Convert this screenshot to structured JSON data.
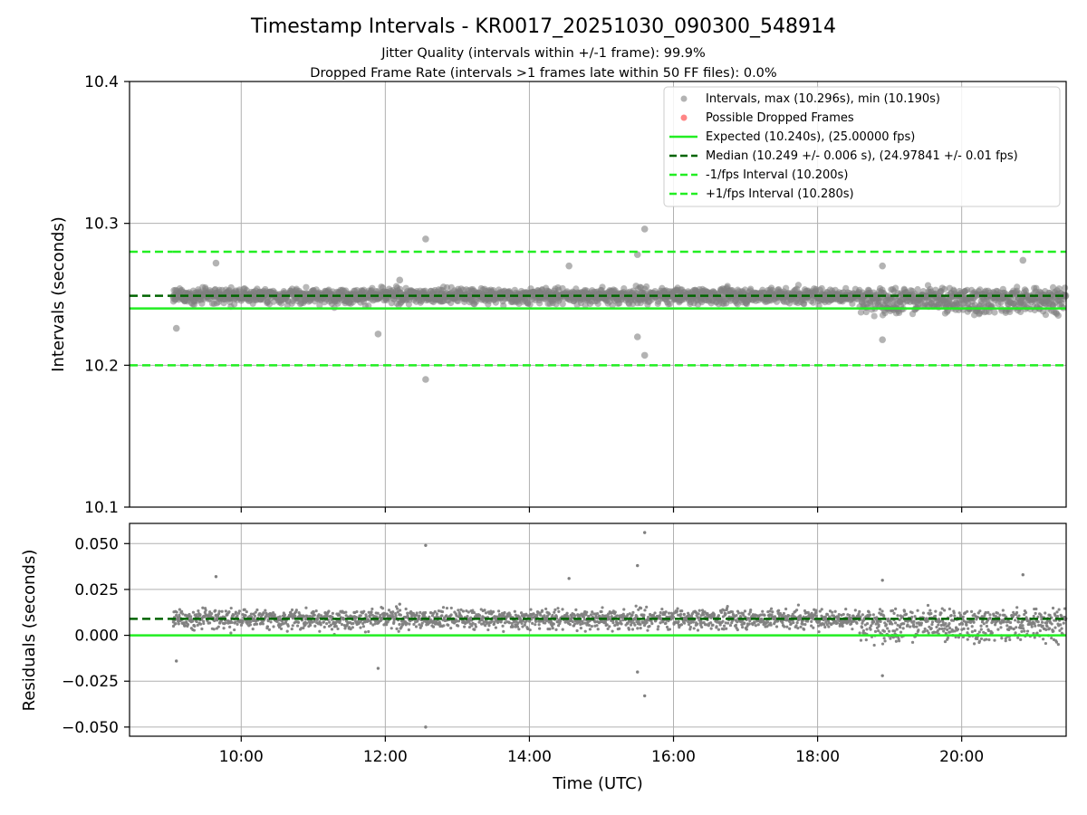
{
  "chart_data": [
    {
      "type": "scatter",
      "panel": "intervals",
      "title": "Timestamp Intervals - KR0017_20251030_090300_548914",
      "subtitle_1": "Jitter Quality (intervals within +/-1 frame): 99.9%",
      "subtitle_2": "Dropped Frame Rate (intervals >1 frames late within 50 FF files): 0.0%",
      "xlabel": "",
      "ylabel": "Intervals (seconds)",
      "xlim_hours": [
        8.45,
        21.45
      ],
      "ylim": [
        10.1,
        10.4
      ],
      "yticks": [
        10.1,
        10.2,
        10.3,
        10.4
      ],
      "ytick_labels": [
        "10.1",
        "10.2",
        "10.3",
        "10.4"
      ],
      "grid": true,
      "legend_placement": "top-right",
      "data_x_range_hours": [
        9.05,
        21.45
      ],
      "expected_interval": 10.24,
      "median_interval": 10.249,
      "minus_fps_interval": 10.2,
      "plus_fps_interval": 10.28,
      "series_max": 10.296,
      "series_min": 10.19,
      "colors": {
        "points": "#808080",
        "dropped": "#ff3333",
        "expected": "#22ee22",
        "median": "#006400",
        "bounds": "#22ee22"
      },
      "legend": [
        "Intervals, max (10.296s), min (10.190s)",
        "Possible Dropped Frames",
        "Expected (10.240s), (25.00000 fps)",
        "Median (10.249 +/- 0.006 s), (24.97841 +/- 0.01 fps)",
        "-1/fps Interval (10.200s)",
        "+1/fps Interval (10.280s)"
      ],
      "outliers": [
        [
          12.56,
          10.289
        ],
        [
          12.56,
          10.19
        ],
        [
          15.6,
          10.296
        ],
        [
          15.6,
          10.207
        ],
        [
          15.5,
          10.278
        ],
        [
          15.5,
          10.22
        ],
        [
          9.65,
          10.272
        ],
        [
          14.55,
          10.27
        ],
        [
          12.2,
          10.26
        ],
        [
          11.9,
          10.222
        ],
        [
          9.1,
          10.226
        ],
        [
          18.9,
          10.218
        ],
        [
          20.85,
          10.274
        ],
        [
          18.9,
          10.27
        ]
      ]
    },
    {
      "type": "scatter",
      "panel": "residuals",
      "xlabel": "Time (UTC)",
      "ylabel": "Residuals (seconds)",
      "xlim_hours": [
        8.45,
        21.45
      ],
      "ylim": [
        -0.055,
        0.061
      ],
      "yticks": [
        -0.05,
        -0.025,
        0.0,
        0.025,
        0.05
      ],
      "ytick_labels": [
        "−0.050",
        "−0.025",
        "0.000",
        "0.025",
        "0.050"
      ],
      "xticks_hours": [
        10,
        12,
        14,
        16,
        18,
        20
      ],
      "xtick_labels": [
        "10:00",
        "12:00",
        "14:00",
        "16:00",
        "18:00",
        "20:00"
      ],
      "grid": true,
      "zero_line": 0.0,
      "median_residual": 0.009,
      "outliers": [
        [
          12.56,
          0.049
        ],
        [
          12.56,
          -0.05
        ],
        [
          15.6,
          0.056
        ],
        [
          15.6,
          -0.033
        ],
        [
          15.5,
          0.038
        ],
        [
          15.5,
          -0.02
        ],
        [
          9.65,
          0.032
        ],
        [
          14.55,
          0.031
        ],
        [
          12.2,
          0.017
        ],
        [
          11.9,
          -0.018
        ],
        [
          9.1,
          -0.014
        ],
        [
          18.9,
          -0.022
        ],
        [
          20.85,
          0.033
        ],
        [
          18.9,
          0.03
        ]
      ]
    }
  ]
}
